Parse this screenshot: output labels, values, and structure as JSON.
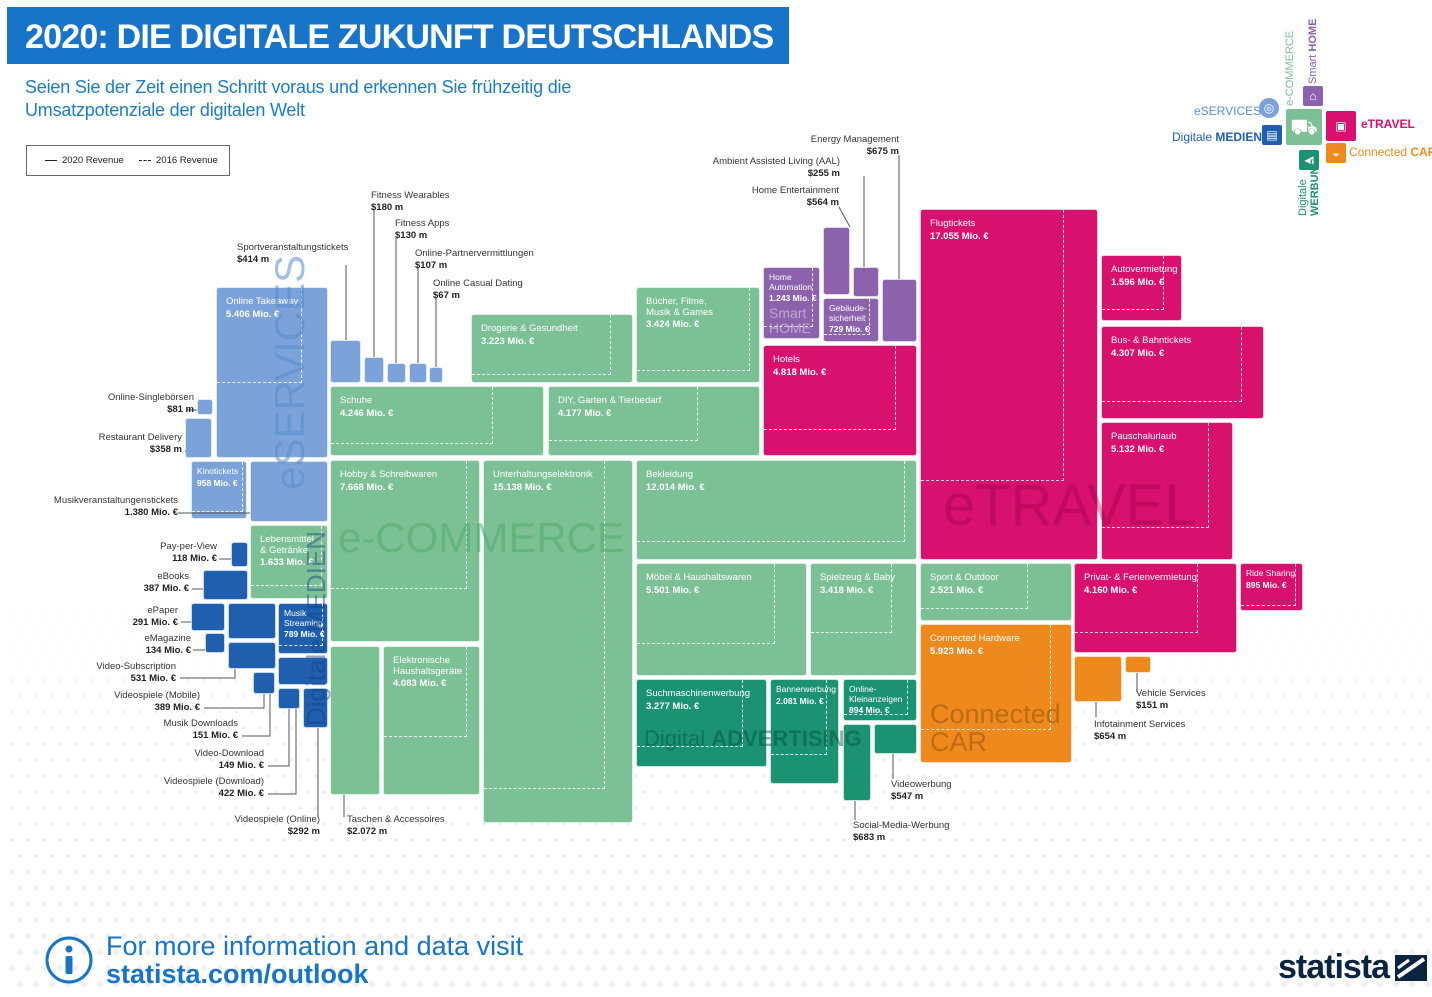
{
  "title": "2020: DIE DIGITALE ZUKUNFT DEUTSCHLANDS",
  "subtitle": "Seien Sie der Zeit einen Schritt voraus und erkennen Sie frühzeitig die Umsatzpotenziale der digitalen Welt",
  "legend": {
    "solid": "2020 Revenue",
    "dashed": "2016 Revenue"
  },
  "colors": {
    "eservices": "#7ba3d9",
    "ecommerce": "#7cc195",
    "medien": "#1f5fae",
    "travel": "#d8106e",
    "smarthome": "#8b62ab",
    "car": "#ee8a1d",
    "werbung": "#1b9272",
    "brand": "#1774c9"
  },
  "category_legend": {
    "eservices": "eSERVICES",
    "ecommerce": "e-COMMERCE",
    "smarthome_a": "Smart",
    "smarthome_b": "HOME",
    "medien_a": "Digitale",
    "medien_b": "MEDIEN",
    "travel": "eTRAVEL",
    "car_a": "Connected",
    "car_b": "CAR",
    "werbung_a": "Digitale",
    "werbung_b": "WERBUNG"
  },
  "big_labels": {
    "eservices": "eSERVICES",
    "ecommerce": "e-COMMERCE",
    "medien": "Digitale MEDIEN",
    "travel": "eTRAVEL",
    "smarthome_a": "Smart",
    "smarthome_b": "HOME",
    "car_a": "Connected",
    "car_b": "CAR",
    "werbung_a": "Digital",
    "werbung_b": "ADVERTISING"
  },
  "tiles": [
    {
      "name": "Online Takeaway",
      "value": "5.406 Mio. €",
      "cat": "eservices"
    },
    {
      "name": "Kinotickets",
      "value": "958 Mio. €",
      "cat": "eservices"
    },
    {
      "name": "Lebensmittel\n& Getränke",
      "value": "1.633 Mio. €",
      "cat": "ecommerce"
    },
    {
      "name": "Musik\nStreaming",
      "value": "789 Mio. €",
      "cat": "medien"
    },
    {
      "name": "Schuhe",
      "value": "4.246 Mio. €",
      "cat": "ecommerce"
    },
    {
      "name": "Drogerie & Gesundheit",
      "value": "3.223 Mio. €",
      "cat": "ecommerce"
    },
    {
      "name": "Bücher, Filme,\nMusik & Games",
      "value": "3.424 Mio. €",
      "cat": "ecommerce"
    },
    {
      "name": "DIY, Garten & Tierbedarf",
      "value": "4.177 Mio. €",
      "cat": "ecommerce"
    },
    {
      "name": "Hobby & Schreibwaren",
      "value": "7.668 Mio. €",
      "cat": "ecommerce"
    },
    {
      "name": "Unterhaltungselektronik",
      "value": "15.138 Mio. €",
      "cat": "ecommerce"
    },
    {
      "name": "Bekleidung",
      "value": "12.014 Mio. €",
      "cat": "ecommerce"
    },
    {
      "name": "Elektronische\nHaushaltsgeräte",
      "value": "4.083 Mio. €",
      "cat": "ecommerce"
    },
    {
      "name": "Möbel & Haushaltswaren",
      "value": "5.501 Mio. €",
      "cat": "ecommerce"
    },
    {
      "name": "Spielzeug & Baby",
      "value": "3.418 Mio. €",
      "cat": "ecommerce"
    },
    {
      "name": "Sport & Outdoor",
      "value": "2.521 Mio. €",
      "cat": "ecommerce"
    },
    {
      "name": "Home\nAutomation",
      "value": "1.243 Mio. €",
      "cat": "smarthome"
    },
    {
      "name": "Gebäude-\nsicherheit",
      "value": "729 Mio. €",
      "cat": "smarthome"
    },
    {
      "name": "Hotels",
      "value": "4.818 Mio. €",
      "cat": "travel"
    },
    {
      "name": "Flugtickets",
      "value": "17.055 Mio. €",
      "cat": "travel"
    },
    {
      "name": "Autovermietung",
      "value": "1.596 Mio. €",
      "cat": "travel"
    },
    {
      "name": "Bus- & Bahntickets",
      "value": "4.307 Mio. €",
      "cat": "travel"
    },
    {
      "name": "Pauschalurlaub",
      "value": "5.132 Mio. €",
      "cat": "travel"
    },
    {
      "name": "Privat- & Ferienvermietung",
      "value": "4.160 Mio. €",
      "cat": "travel"
    },
    {
      "name": "Ride Sharing",
      "value": "895 Mio. €",
      "cat": "travel"
    },
    {
      "name": "Connected Hardware",
      "value": "5.923 Mio. €",
      "cat": "car"
    },
    {
      "name": "Suchmaschinenwerbung",
      "value": "3.277 Mio. €",
      "cat": "werbung"
    },
    {
      "name": "Bannerwerbung",
      "value": "2.081 Mio. €",
      "cat": "werbung"
    },
    {
      "name": "Online-\nKleinanzeigen",
      "value": "894 Mio. €",
      "cat": "werbung"
    }
  ],
  "unlabeled_tiles": [
    {
      "cat": "eservices",
      "ref": "Sportveranstaltungstickets"
    },
    {
      "cat": "eservices",
      "ref": "Fitness Wearables"
    },
    {
      "cat": "eservices",
      "ref": "Fitness Apps"
    },
    {
      "cat": "eservices",
      "ref": "Online-Partnervermittlungen"
    },
    {
      "cat": "eservices",
      "ref": "Online Casual Dating"
    },
    {
      "cat": "eservices",
      "ref": "Online-Singlebörsen"
    },
    {
      "cat": "eservices",
      "ref": "Restaurant Delivery"
    },
    {
      "cat": "eservices",
      "ref": "Musikveranstaltungenstickets"
    },
    {
      "cat": "medien",
      "ref": "Pay-per-View"
    },
    {
      "cat": "medien",
      "ref": "eBooks"
    },
    {
      "cat": "medien",
      "ref": "ePaper"
    },
    {
      "cat": "medien",
      "ref": "eMagazine"
    },
    {
      "cat": "medien",
      "ref": "Video-Subscription"
    },
    {
      "cat": "medien",
      "ref": "Videospiele (Mobile)"
    },
    {
      "cat": "medien",
      "ref": "Musik Downloads"
    },
    {
      "cat": "medien",
      "ref": "Video-Download"
    },
    {
      "cat": "medien",
      "ref": "Videospiele (Download)"
    },
    {
      "cat": "medien",
      "ref": "Videospiele (Online)"
    },
    {
      "cat": "ecommerce",
      "ref": "Taschen & Accessoires"
    },
    {
      "cat": "smarthome",
      "ref": "Ambient Assisted Living (AAL)"
    },
    {
      "cat": "smarthome",
      "ref": "Home Entertainment"
    },
    {
      "cat": "smarthome",
      "ref": "Energy Management"
    },
    {
      "cat": "car",
      "ref": "Infotainment Services"
    },
    {
      "cat": "car",
      "ref": "Vehicle Services"
    },
    {
      "cat": "werbung",
      "ref": "Social-Media-Werbung"
    },
    {
      "cat": "werbung",
      "ref": "Videowerbung"
    }
  ],
  "external_labels": [
    {
      "name": "Sportveranstaltungstickets",
      "value": "$414 m"
    },
    {
      "name": "Fitness Wearables",
      "value": "$180 m"
    },
    {
      "name": "Fitness Apps",
      "value": "$130 m"
    },
    {
      "name": "Online-Partnervermittlungen",
      "value": "$107 m"
    },
    {
      "name": "Online Casual Dating",
      "value": "$67 m"
    },
    {
      "name": "Online-Singlebörsen",
      "value": "$81 m"
    },
    {
      "name": "Restaurant Delivery",
      "value": "$358 m"
    },
    {
      "name": "Musikveranstaltungenstickets",
      "value": "1.380 Mio. €"
    },
    {
      "name": "Pay-per-View",
      "value": "118 Mio. €"
    },
    {
      "name": "eBooks",
      "value": "387 Mio. €"
    },
    {
      "name": "ePaper",
      "value": "291 Mio. €"
    },
    {
      "name": "eMagazine",
      "value": "134 Mio. €"
    },
    {
      "name": "Video-Subscription",
      "value": "531 Mio. €"
    },
    {
      "name": "Videospiele (Mobile)",
      "value": "389 Mio. €"
    },
    {
      "name": "Musik Downloads",
      "value": "151 Mio. €"
    },
    {
      "name": "Video-Download",
      "value": "149 Mio. €"
    },
    {
      "name": "Videospiele (Download)",
      "value": "422 Mio. €"
    },
    {
      "name": "Videospiele (Online)",
      "value": "$292 m"
    },
    {
      "name": "Taschen & Accessoires",
      "value": "$2.072 m"
    },
    {
      "name": "Energy Management",
      "value": "$675 m"
    },
    {
      "name": "Ambient Assisted Living (AAL)",
      "value": "$255 m"
    },
    {
      "name": "Home Entertainment",
      "value": "$564 m"
    },
    {
      "name": "Vehicle Services",
      "value": "$151 m"
    },
    {
      "name": "Infotainment Services",
      "value": "$654 m"
    },
    {
      "name": "Videowerbung",
      "value": "$547 m"
    },
    {
      "name": "Social-Media-Werbung",
      "value": "$683 m"
    }
  ],
  "footer": {
    "line1": "For more information and data visit",
    "line2": "statista.com/outlook",
    "logo": "statista"
  }
}
